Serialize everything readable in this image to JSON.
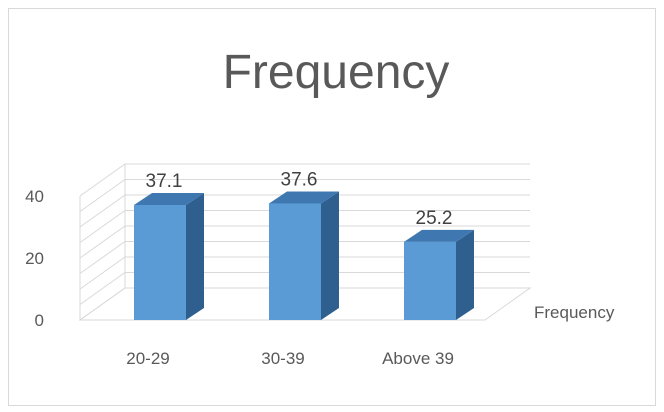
{
  "chart_data": {
    "type": "bar",
    "style": "3d-clustered-column",
    "title": "Frequency",
    "categories": [
      "20-29",
      "30-39",
      "Above 39"
    ],
    "series": [
      {
        "name": "Frequency",
        "values": [
          37.1,
          37.6,
          25.2
        ]
      }
    ],
    "data_labels": [
      "37.1",
      "37.6",
      "25.2"
    ],
    "ylim": [
      0,
      40
    ],
    "yticks": [
      "0",
      "20",
      "40"
    ],
    "grid": true,
    "legend": "right",
    "colors": {
      "bar_front": "#5b9bd5",
      "bar_top": "#3f78b0",
      "bar_side": "#2e5f8f",
      "grid": "#d9d9d9",
      "text": "#595959"
    }
  }
}
